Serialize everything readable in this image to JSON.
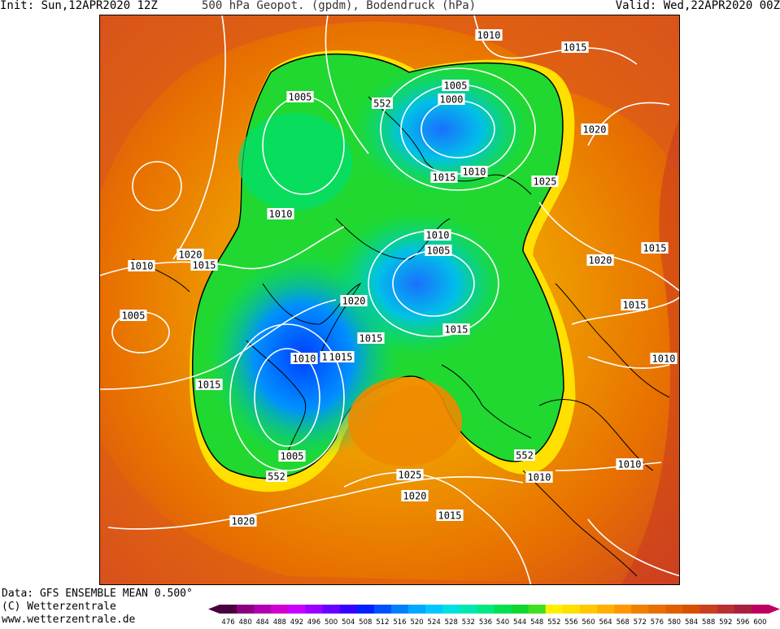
{
  "header": {
    "init": "Init: Sun,12APR2020 12Z",
    "title": "500 hPa Geopot. (gpdm), Bodendruck (hPa)",
    "valid": "Valid: Wed,22APR2020 00Z"
  },
  "footer": {
    "data": "Data: GFS ENSEMBLE MEAN 0.500°",
    "copyright": "(C) Wetterzentrale",
    "website": "www.wetterzentrale.de"
  },
  "color_scale": {
    "unit": "gpdm",
    "values": [
      "476",
      "480",
      "484",
      "488",
      "492",
      "496",
      "500",
      "504",
      "508",
      "512",
      "516",
      "520",
      "524",
      "528",
      "532",
      "536",
      "540",
      "544",
      "548",
      "552",
      "556",
      "560",
      "564",
      "568",
      "572",
      "576",
      "580",
      "584",
      "588",
      "592",
      "596",
      "600"
    ],
    "colors": [
      "#4a0040",
      "#8a0080",
      "#b000b0",
      "#d000d0",
      "#c800ff",
      "#9a00ff",
      "#6a00ff",
      "#3a00ff",
      "#0020ff",
      "#0050ff",
      "#0080ff",
      "#00a8ff",
      "#00c8ff",
      "#00e0e0",
      "#00e8b0",
      "#00e880",
      "#00e050",
      "#10d830",
      "#40e020",
      "#fff000",
      "#ffe000",
      "#ffc800",
      "#ffb000",
      "#ff9800",
      "#f08000",
      "#e87000",
      "#e06000",
      "#d85000",
      "#c84020",
      "#b83030",
      "#a82040",
      "#c00060"
    ]
  },
  "isobar_labels": [
    {
      "id": "l1",
      "text": "1010"
    },
    {
      "id": "l2",
      "text": "1015"
    },
    {
      "id": "l3",
      "text": "1005"
    },
    {
      "id": "l4",
      "text": "1000"
    },
    {
      "id": "l5",
      "text": "552"
    },
    {
      "id": "l6",
      "text": "1005"
    },
    {
      "id": "l7",
      "text": "1020"
    },
    {
      "id": "l8",
      "text": "1015"
    },
    {
      "id": "l9",
      "text": "1010"
    },
    {
      "id": "l10",
      "text": "1025"
    },
    {
      "id": "l11",
      "text": "1010"
    },
    {
      "id": "l12",
      "text": "1010"
    },
    {
      "id": "l13",
      "text": "1005"
    },
    {
      "id": "l14",
      "text": "1015"
    },
    {
      "id": "l15",
      "text": "1020"
    },
    {
      "id": "l16",
      "text": "1015"
    },
    {
      "id": "l17",
      "text": "1010"
    },
    {
      "id": "l18",
      "text": "1020"
    },
    {
      "id": "l19",
      "text": "1015"
    },
    {
      "id": "l20",
      "text": "1005"
    },
    {
      "id": "l21",
      "text": "1020"
    },
    {
      "id": "l22",
      "text": "1015"
    },
    {
      "id": "l23",
      "text": "1015"
    },
    {
      "id": "l24",
      "text": "1025"
    },
    {
      "id": "l25",
      "text": "1010"
    },
    {
      "id": "l26",
      "text": "1015"
    },
    {
      "id": "l27",
      "text": "1010"
    },
    {
      "id": "l28",
      "text": "1015"
    },
    {
      "id": "l29",
      "text": "1005"
    },
    {
      "id": "l30",
      "text": "552"
    },
    {
      "id": "l31",
      "text": "1025"
    },
    {
      "id": "l32",
      "text": "1020"
    },
    {
      "id": "l33",
      "text": "1015"
    },
    {
      "id": "l34",
      "text": "552"
    },
    {
      "id": "l35",
      "text": "1010"
    },
    {
      "id": "l36",
      "text": "1010"
    },
    {
      "id": "l37",
      "text": "1020"
    }
  ]
}
